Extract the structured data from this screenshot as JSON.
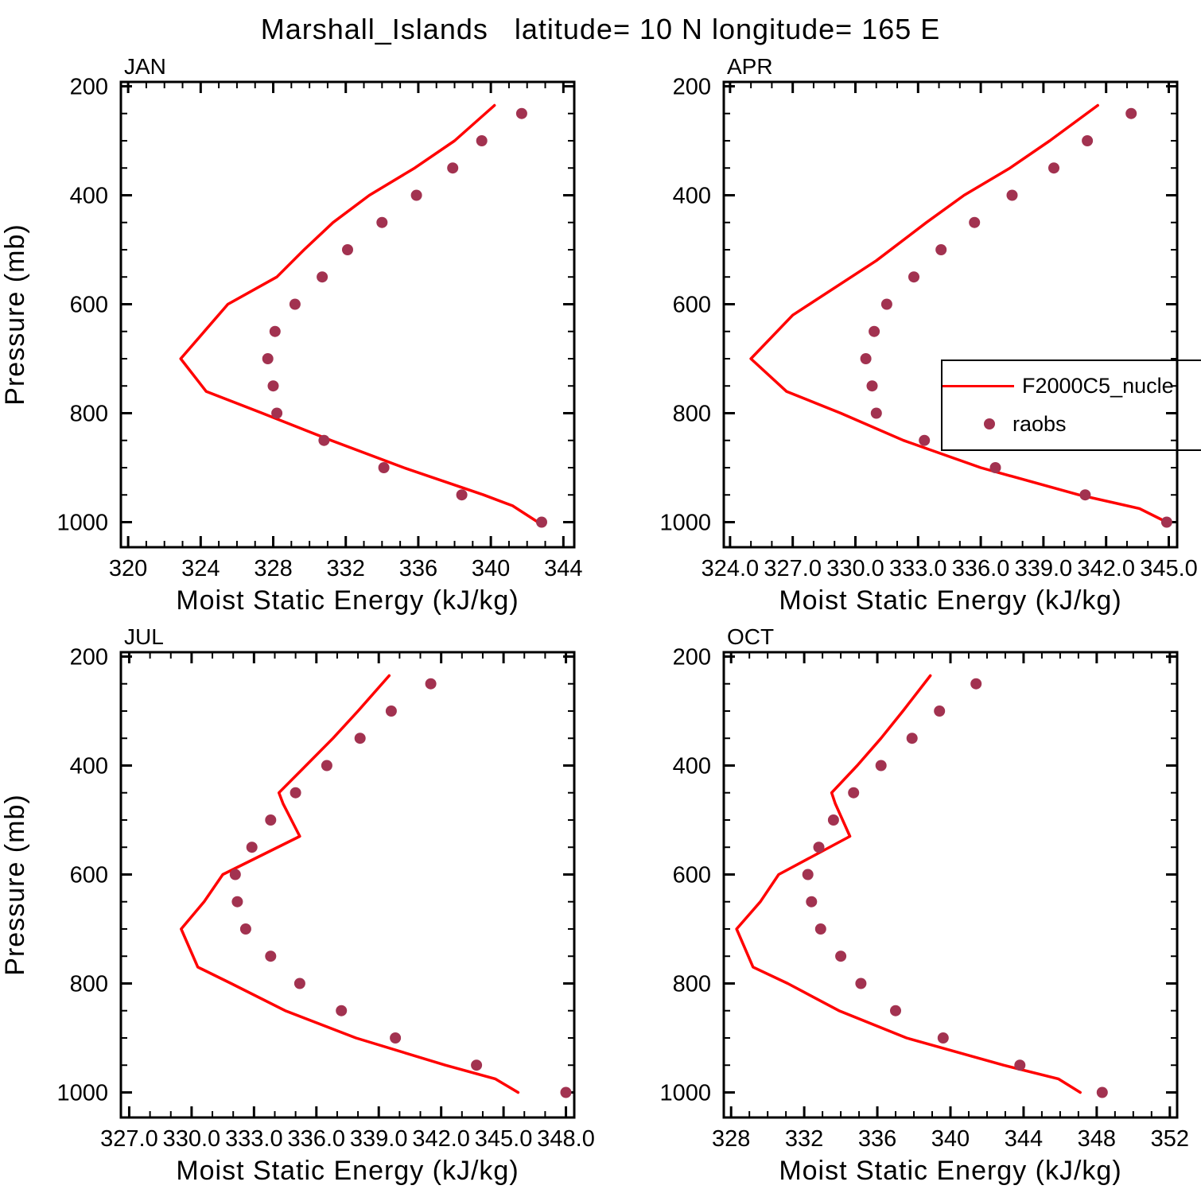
{
  "title": "Marshall_Islands   latitude= 10 N longitude= 165 E",
  "ylabel": "Pressure (mb)",
  "xlabel": "Moist Static Energy (kJ/kg)",
  "legend": {
    "line_label": "F2000C5_nucle",
    "dot_label": "raobs",
    "line_color": "#ff0000",
    "dot_color": "#a23250"
  },
  "chart_data": {
    "type": "line",
    "line_color": "#ff0000",
    "dot_color": "#a23250",
    "ylabel": "Pressure (mb)",
    "xlabel": "Moist Static Energy (kJ/kg)",
    "legend_entries": [
      "F2000C5_nucle",
      "raobs"
    ],
    "panels": [
      {
        "label": "JAN",
        "xlim": [
          319.6,
          344.6
        ],
        "ylim": [
          200,
          1000
        ],
        "xticks": [
          320,
          324,
          328,
          332,
          336,
          340,
          344
        ],
        "xtick_labels": [
          "320",
          "324",
          "328",
          "332",
          "336",
          "340",
          "344"
        ],
        "x_minor_step": 1,
        "yticks": [
          200,
          400,
          600,
          800,
          1000
        ],
        "y_minor_step": 50,
        "series": [
          {
            "name": "F2000C5_nucle",
            "type": "line",
            "points": [
              [
                235,
                340.2
              ],
              [
                300,
                338.0
              ],
              [
                350,
                335.8
              ],
              [
                400,
                333.3
              ],
              [
                450,
                331.3
              ],
              [
                500,
                329.7
              ],
              [
                550,
                328.2
              ],
              [
                600,
                325.5
              ],
              [
                650,
                324.2
              ],
              [
                700,
                322.9
              ],
              [
                760,
                324.3
              ],
              [
                800,
                327.4
              ],
              [
                850,
                331.2
              ],
              [
                900,
                335.2
              ],
              [
                950,
                339.6
              ],
              [
                970,
                341.2
              ],
              [
                1000,
                342.6
              ]
            ]
          },
          {
            "name": "raobs",
            "type": "scatter",
            "points": [
              [
                250,
                341.7
              ],
              [
                300,
                339.5
              ],
              [
                350,
                337.9
              ],
              [
                400,
                335.9
              ],
              [
                450,
                334.0
              ],
              [
                500,
                332.1
              ],
              [
                550,
                330.7
              ],
              [
                600,
                329.2
              ],
              [
                650,
                328.1
              ],
              [
                700,
                327.7
              ],
              [
                750,
                328.0
              ],
              [
                800,
                328.2
              ],
              [
                850,
                330.8
              ],
              [
                900,
                334.1
              ],
              [
                950,
                338.4
              ],
              [
                1000,
                342.8
              ]
            ]
          }
        ]
      },
      {
        "label": "APR",
        "xlim": [
          323.7,
          345.4
        ],
        "ylim": [
          200,
          1000
        ],
        "xticks": [
          324,
          327,
          330,
          333,
          336,
          339,
          342,
          345
        ],
        "xtick_labels": [
          "324.0",
          "327.0",
          "330.0",
          "333.0",
          "336.0",
          "339.0",
          "342.0",
          "345.0"
        ],
        "x_minor_step": 1,
        "yticks": [
          200,
          400,
          600,
          800,
          1000
        ],
        "y_minor_step": 50,
        "series": [
          {
            "name": "F2000C5_nucle",
            "type": "line",
            "points": [
              [
                235,
                341.6
              ],
              [
                300,
                339.3
              ],
              [
                350,
                337.4
              ],
              [
                400,
                335.2
              ],
              [
                450,
                333.4
              ],
              [
                520,
                331.0
              ],
              [
                600,
                327.8
              ],
              [
                620,
                327.0
              ],
              [
                700,
                325.0
              ],
              [
                760,
                326.7
              ],
              [
                800,
                329.3
              ],
              [
                850,
                332.3
              ],
              [
                900,
                336.0
              ],
              [
                950,
                340.7
              ],
              [
                975,
                343.6
              ],
              [
                1000,
                344.9
              ]
            ]
          },
          {
            "name": "raobs",
            "type": "scatter",
            "points": [
              [
                250,
                343.2
              ],
              [
                300,
                341.1
              ],
              [
                350,
                339.5
              ],
              [
                400,
                337.5
              ],
              [
                450,
                335.7
              ],
              [
                500,
                334.1
              ],
              [
                550,
                332.8
              ],
              [
                600,
                331.5
              ],
              [
                650,
                330.9
              ],
              [
                700,
                330.5
              ],
              [
                750,
                330.8
              ],
              [
                800,
                331.0
              ],
              [
                850,
                333.3
              ],
              [
                900,
                336.7
              ],
              [
                950,
                341.0
              ],
              [
                1000,
                344.9
              ]
            ]
          }
        ]
      },
      {
        "label": "JUL",
        "xlim": [
          326.6,
          348.4
        ],
        "ylim": [
          200,
          1000
        ],
        "xticks": [
          327,
          330,
          333,
          336,
          339,
          342,
          345,
          348
        ],
        "xtick_labels": [
          "327.0",
          "330.0",
          "333.0",
          "336.0",
          "339.0",
          "342.0",
          "345.0",
          "348.0"
        ],
        "x_minor_step": 1,
        "yticks": [
          200,
          400,
          600,
          800,
          1000
        ],
        "y_minor_step": 50,
        "series": [
          {
            "name": "F2000C5_nucle",
            "type": "line",
            "points": [
              [
                235,
                339.5
              ],
              [
                300,
                338.0
              ],
              [
                350,
                336.8
              ],
              [
                400,
                335.5
              ],
              [
                450,
                334.2
              ],
              [
                470,
                334.4
              ],
              [
                530,
                335.2
              ],
              [
                600,
                331.5
              ],
              [
                650,
                330.6
              ],
              [
                700,
                329.5
              ],
              [
                770,
                330.3
              ],
              [
                800,
                331.9
              ],
              [
                850,
                334.5
              ],
              [
                900,
                337.9
              ],
              [
                950,
                342.2
              ],
              [
                975,
                344.6
              ],
              [
                1000,
                345.7
              ]
            ]
          },
          {
            "name": "raobs",
            "type": "scatter",
            "points": [
              [
                250,
                341.5
              ],
              [
                300,
                339.6
              ],
              [
                350,
                338.1
              ],
              [
                400,
                336.5
              ],
              [
                450,
                335.0
              ],
              [
                500,
                333.8
              ],
              [
                550,
                332.9
              ],
              [
                600,
                332.1
              ],
              [
                650,
                332.2
              ],
              [
                700,
                332.6
              ],
              [
                750,
                333.8
              ],
              [
                800,
                335.2
              ],
              [
                850,
                337.2
              ],
              [
                900,
                339.8
              ],
              [
                950,
                343.7
              ],
              [
                1000,
                348.0
              ]
            ]
          }
        ]
      },
      {
        "label": "OCT",
        "xlim": [
          327.6,
          352.4
        ],
        "ylim": [
          200,
          1000
        ],
        "xticks": [
          328,
          332,
          336,
          340,
          344,
          348,
          352
        ],
        "xtick_labels": [
          "328",
          "332",
          "336",
          "340",
          "344",
          "348",
          "352"
        ],
        "x_minor_step": 1,
        "yticks": [
          200,
          400,
          600,
          800,
          1000
        ],
        "y_minor_step": 50,
        "series": [
          {
            "name": "F2000C5_nucle",
            "type": "line",
            "points": [
              [
                235,
                338.9
              ],
              [
                300,
                337.4
              ],
              [
                350,
                336.2
              ],
              [
                400,
                334.9
              ],
              [
                450,
                333.5
              ],
              [
                470,
                333.7
              ],
              [
                530,
                334.5
              ],
              [
                600,
                330.6
              ],
              [
                650,
                329.6
              ],
              [
                700,
                328.3
              ],
              [
                770,
                329.2
              ],
              [
                800,
                331.1
              ],
              [
                850,
                333.9
              ],
              [
                900,
                337.6
              ],
              [
                950,
                342.9
              ],
              [
                975,
                345.9
              ],
              [
                1000,
                347.1
              ]
            ]
          },
          {
            "name": "raobs",
            "type": "scatter",
            "points": [
              [
                250,
                341.4
              ],
              [
                300,
                339.4
              ],
              [
                350,
                337.9
              ],
              [
                400,
                336.2
              ],
              [
                450,
                334.7
              ],
              [
                500,
                333.6
              ],
              [
                550,
                332.8
              ],
              [
                600,
                332.2
              ],
              [
                650,
                332.4
              ],
              [
                700,
                332.9
              ],
              [
                750,
                334.0
              ],
              [
                800,
                335.1
              ],
              [
                850,
                337.0
              ],
              [
                900,
                339.6
              ],
              [
                950,
                343.8
              ],
              [
                1000,
                348.3
              ]
            ]
          }
        ]
      }
    ]
  }
}
